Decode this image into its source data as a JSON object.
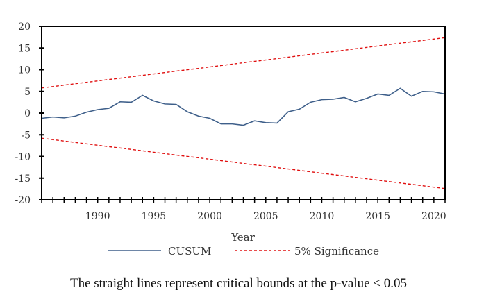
{
  "chart_data": {
    "type": "line",
    "xlabel": "Year",
    "ylabel": "",
    "xlim": [
      1985,
      2021
    ],
    "ylim": [
      -20,
      20
    ],
    "x_ticks": [
      1990,
      1995,
      2000,
      2005,
      2010,
      2015,
      2020
    ],
    "y_ticks": [
      20,
      15,
      10,
      5,
      0,
      -5,
      -10,
      -15,
      -20
    ],
    "grid": false,
    "legend_position": "bottom",
    "series": [
      {
        "name": "CUSUM",
        "color": "#3e5f8a",
        "style": "solid",
        "x": [
          1985,
          1986,
          1987,
          1988,
          1989,
          1990,
          1991,
          1992,
          1993,
          1994,
          1995,
          1996,
          1997,
          1998,
          1999,
          2000,
          2001,
          2002,
          2003,
          2004,
          2005,
          2006,
          2007,
          2008,
          2009,
          2010,
          2011,
          2012,
          2013,
          2014,
          2015,
          2016,
          2017,
          2018,
          2019,
          2020,
          2021
        ],
        "values": [
          -1.2,
          -0.9,
          -1.1,
          -0.7,
          0.2,
          0.8,
          1.1,
          2.6,
          2.5,
          4.1,
          2.8,
          2.1,
          2.0,
          0.3,
          -0.7,
          -1.2,
          -2.5,
          -2.5,
          -2.8,
          -1.8,
          -2.2,
          -2.3,
          0.3,
          0.9,
          2.5,
          3.1,
          3.2,
          3.6,
          2.6,
          3.4,
          4.4,
          4.1,
          5.7,
          3.9,
          5.0,
          4.9,
          4.4
        ]
      },
      {
        "name": "5% Significance",
        "color": "#e01010",
        "style": "dashed",
        "x": [
          1985,
          2021
        ],
        "values": [
          5.8,
          17.4
        ]
      },
      {
        "name": "",
        "color": "#e01010",
        "style": "dashed",
        "x": [
          1985,
          2021
        ],
        "values": [
          -5.8,
          -17.4
        ]
      }
    ]
  },
  "legend": {
    "cusum_label": "CUSUM",
    "significance_label": "5% Significance"
  },
  "caption": "The straight lines represent critical bounds at the p-value < 0.05"
}
